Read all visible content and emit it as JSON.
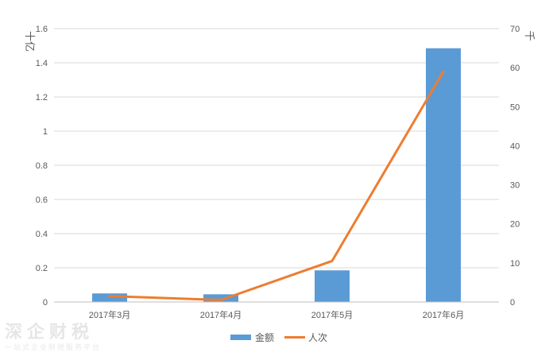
{
  "watermark": {
    "name": "深企财税",
    "slogan": "一站式企业财税服务平台"
  },
  "chart_data": {
    "type": "bar",
    "categories": [
      "2017年3月",
      "2017年4月",
      "2017年5月",
      "2017年6月"
    ],
    "series": [
      {
        "name": "金额",
        "type": "bar",
        "axis": "left",
        "color": "#5b9bd5",
        "values": [
          0.05,
          0.045,
          0.185,
          1.485
        ]
      },
      {
        "name": "人次",
        "type": "line",
        "axis": "right",
        "color": "#ed7d31",
        "values": [
          1.5,
          0.5,
          10.5,
          59
        ]
      }
    ],
    "y_left": {
      "label": "十亿",
      "ylim": [
        0,
        1.6
      ],
      "ticks": [
        "0",
        "0.2",
        "0.4",
        "0.6",
        "0.8",
        "1",
        "1.2",
        "1.4",
        "1.6"
      ]
    },
    "y_right": {
      "label": "千",
      "ylim": [
        0,
        70
      ],
      "ticks": [
        "0",
        "10",
        "20",
        "30",
        "40",
        "50",
        "60",
        "70"
      ]
    },
    "grid": true,
    "legend_position": "bottom"
  }
}
